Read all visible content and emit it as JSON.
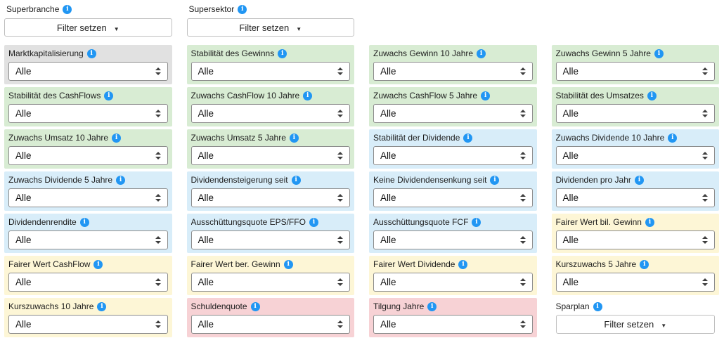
{
  "header": {
    "superbranche": {
      "label": "Superbranche",
      "button": "Filter setzen"
    },
    "supersektor": {
      "label": "Supersektor",
      "button": "Filter setzen"
    }
  },
  "filters": [
    {
      "label": "Marktkapitalisierung",
      "value": "Alle",
      "category": "gray"
    },
    {
      "label": "Stabilität des Gewinns",
      "value": "Alle",
      "category": "green"
    },
    {
      "label": "Zuwachs Gewinn 10 Jahre",
      "value": "Alle",
      "category": "green"
    },
    {
      "label": "Zuwachs Gewinn 5 Jahre",
      "value": "Alle",
      "category": "green"
    },
    {
      "label": "Stabilität des CashFlows",
      "value": "Alle",
      "category": "green"
    },
    {
      "label": "Zuwachs CashFlow 10 Jahre",
      "value": "Alle",
      "category": "green"
    },
    {
      "label": "Zuwachs CashFlow 5 Jahre",
      "value": "Alle",
      "category": "green"
    },
    {
      "label": "Stabilität des Umsatzes",
      "value": "Alle",
      "category": "green"
    },
    {
      "label": "Zuwachs Umsatz 10 Jahre",
      "value": "Alle",
      "category": "green"
    },
    {
      "label": "Zuwachs Umsatz 5 Jahre",
      "value": "Alle",
      "category": "green"
    },
    {
      "label": "Stabilität der Dividende",
      "value": "Alle",
      "category": "blue"
    },
    {
      "label": "Zuwachs Dividende 10 Jahre",
      "value": "Alle",
      "category": "blue"
    },
    {
      "label": "Zuwachs Dividende 5 Jahre",
      "value": "Alle",
      "category": "blue"
    },
    {
      "label": "Dividendensteigerung seit",
      "value": "Alle",
      "category": "blue"
    },
    {
      "label": "Keine Dividendensenkung seit",
      "value": "Alle",
      "category": "blue"
    },
    {
      "label": "Dividenden pro Jahr",
      "value": "Alle",
      "category": "blue"
    },
    {
      "label": "Dividendenrendite",
      "value": "Alle",
      "category": "blue"
    },
    {
      "label": "Ausschüttungsquote EPS/FFO",
      "value": "Alle",
      "category": "blue"
    },
    {
      "label": "Ausschüttungsquote FCF",
      "value": "Alle",
      "category": "blue"
    },
    {
      "label": "Fairer Wert bil. Gewinn",
      "value": "Alle",
      "category": "yellow"
    },
    {
      "label": "Fairer Wert CashFlow",
      "value": "Alle",
      "category": "yellow"
    },
    {
      "label": "Fairer Wert ber. Gewinn",
      "value": "Alle",
      "category": "yellow"
    },
    {
      "label": "Fairer Wert Dividende",
      "value": "Alle",
      "category": "yellow"
    },
    {
      "label": "Kurszuwachs 5 Jahre",
      "value": "Alle",
      "category": "yellow"
    },
    {
      "label": "Kurszuwachs 10 Jahre",
      "value": "Alle",
      "category": "yellow"
    },
    {
      "label": "Schuldenquote",
      "value": "Alle",
      "category": "red"
    },
    {
      "label": "Tilgung Jahre",
      "value": "Alle",
      "category": "red"
    }
  ],
  "sparplan": {
    "label": "Sparplan",
    "button": "Filter setzen"
  },
  "icons": {
    "info": "info-icon",
    "caret_down": "caret-down-icon",
    "select_arrows": "updown-arrows-icon"
  },
  "colors": {
    "category_gray": "#e1e1e1",
    "category_green": "#d8ecd3",
    "category_blue": "#d8edf9",
    "category_yellow": "#fdf6d6",
    "category_red": "#f7d2d5",
    "info_icon": "#2196f3"
  }
}
